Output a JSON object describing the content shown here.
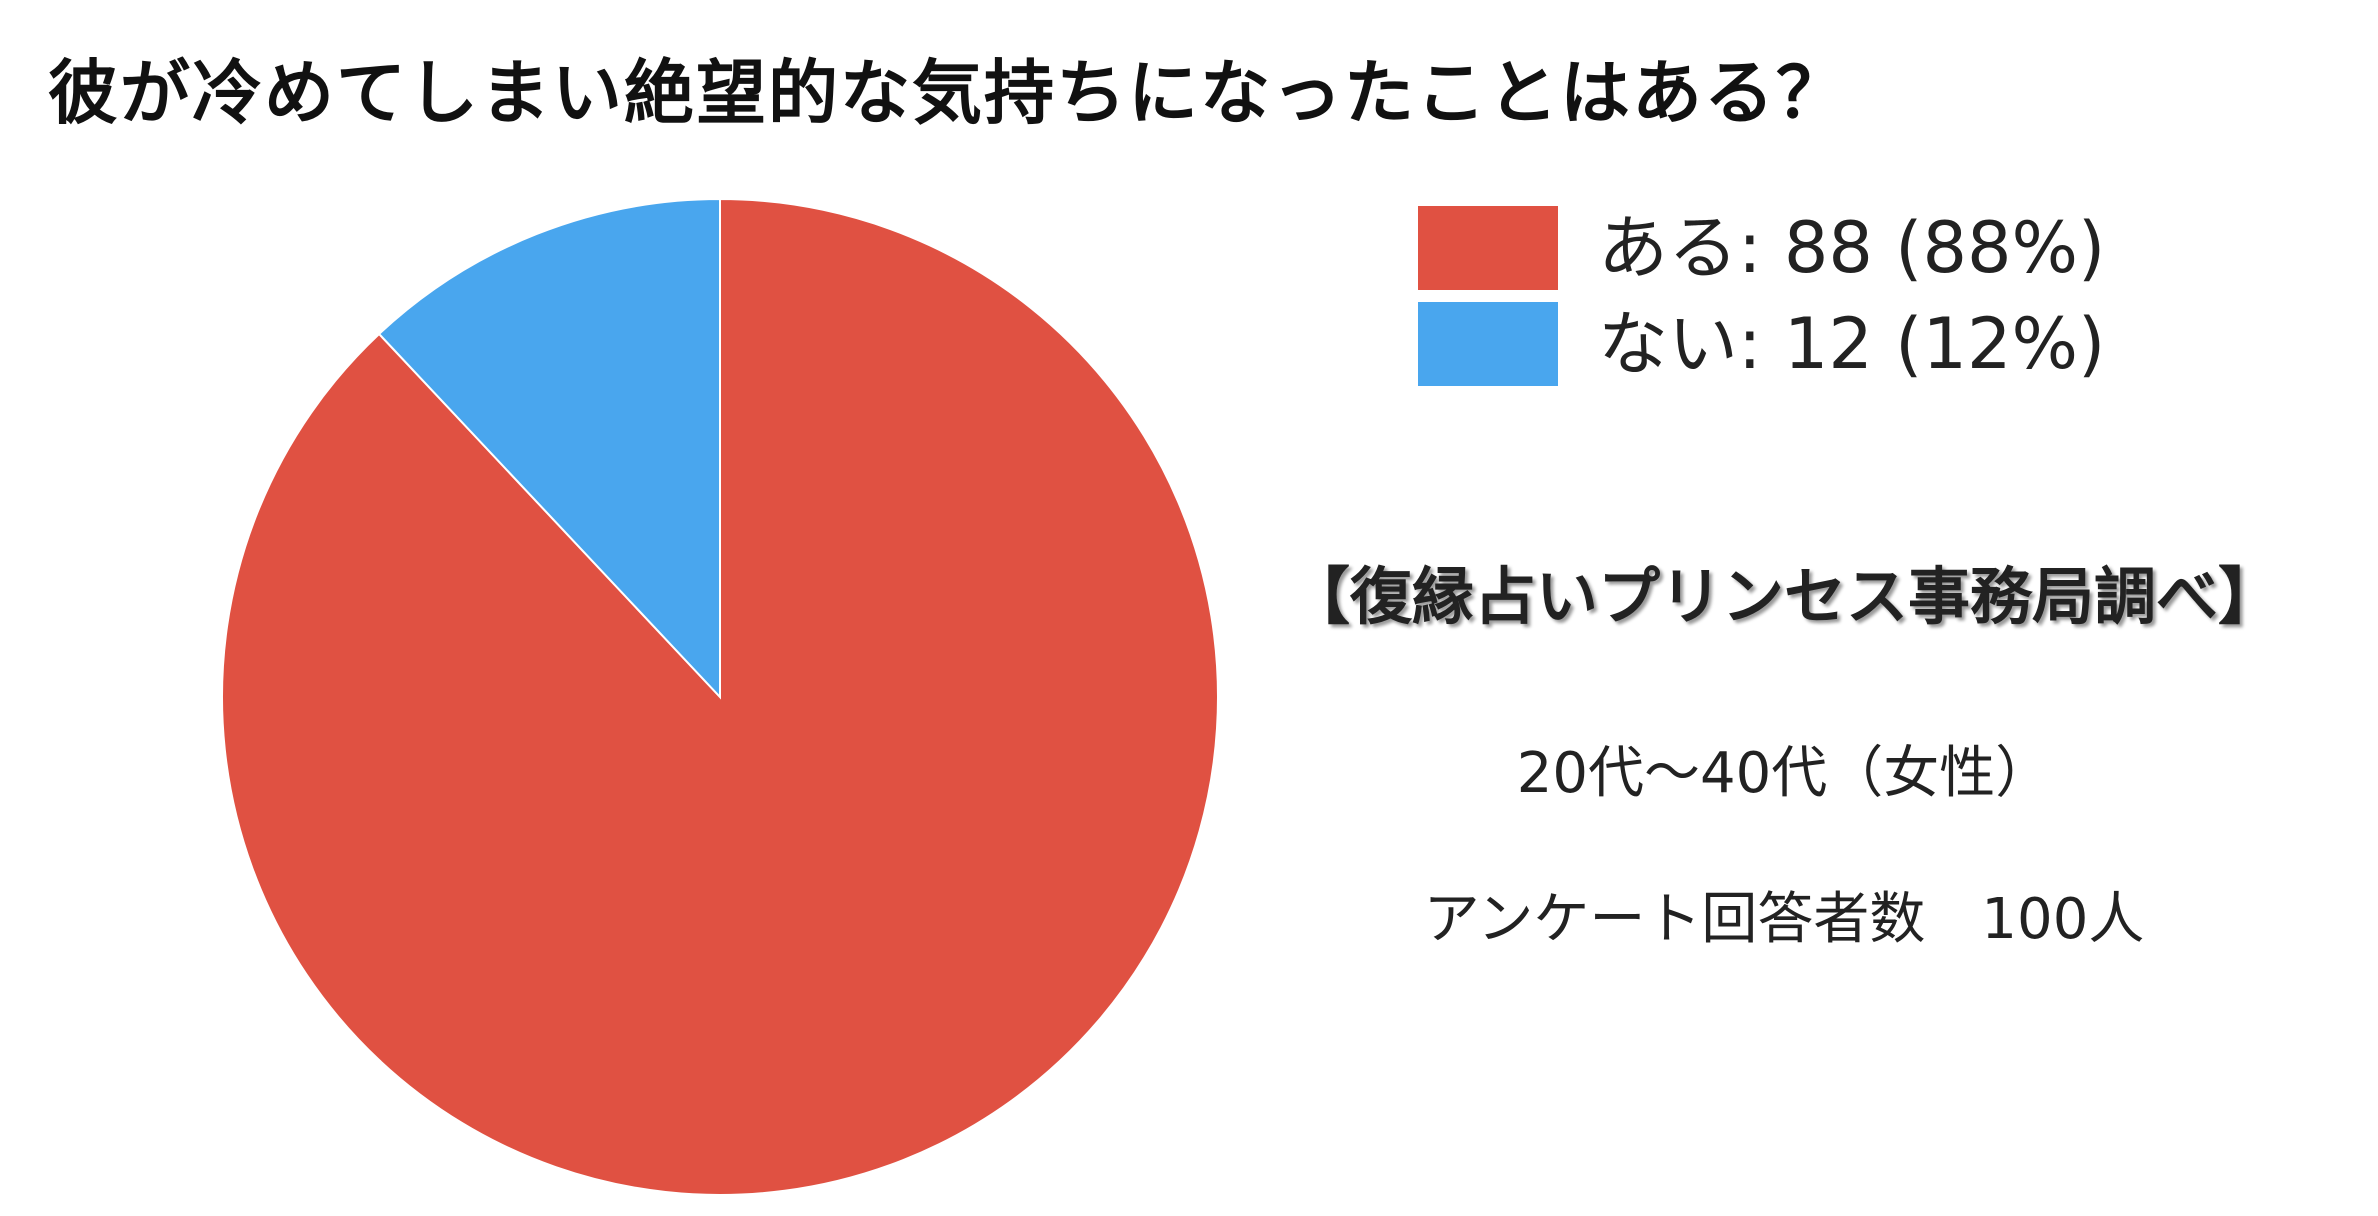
{
  "chart_data": {
    "type": "pie",
    "title": "彼が冷めてしまい絶望的な気持ちになったことはある？",
    "categories": [
      "ある",
      "ない"
    ],
    "values": [
      88,
      12
    ],
    "percentages": [
      88,
      12
    ],
    "colors": [
      "#e05142",
      "#49a6ee"
    ],
    "legend": [
      {
        "label": "ある: 88 (88%)",
        "color": "#e05142"
      },
      {
        "label": "ない: 12 (12%)",
        "color": "#49a6ee"
      }
    ],
    "legend_position": "top-right"
  },
  "notes": {
    "source": "【復縁占いプリンセス事務局調べ】",
    "age_range": "20代〜40代（女性）",
    "respondents": "アンケート回答者数　100人"
  }
}
